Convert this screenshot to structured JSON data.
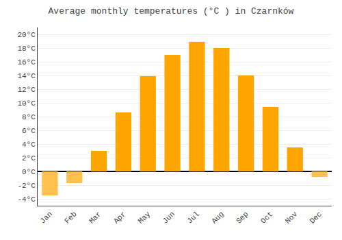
{
  "chart_data": {
    "type": "bar",
    "title": "Average monthly temperatures (°C ) in Czarnków",
    "categories": [
      "Jan",
      "Feb",
      "Mar",
      "Apr",
      "May",
      "Jun",
      "Jul",
      "Aug",
      "Sep",
      "Oct",
      "Nov",
      "Dec"
    ],
    "values": [
      -3.5,
      -1.7,
      3.0,
      8.6,
      13.9,
      17.0,
      18.9,
      18.0,
      14.0,
      9.4,
      3.5,
      -0.8
    ],
    "colors": [
      "#FFC04D",
      "#FFC04D",
      "#FFA500",
      "#FFA500",
      "#FFA500",
      "#FFA500",
      "#FFA500",
      "#FFA500",
      "#FFA500",
      "#FFA500",
      "#FFA500",
      "#FFC04D"
    ],
    "ylim": [
      -5,
      21
    ],
    "yticks": [
      {
        "value": -4,
        "label": "-4°C"
      },
      {
        "value": -2,
        "label": "-2°C"
      },
      {
        "value": 0,
        "label": "0°C"
      },
      {
        "value": 2,
        "label": "2°C"
      },
      {
        "value": 4,
        "label": "4°C"
      },
      {
        "value": 6,
        "label": "6°C"
      },
      {
        "value": 8,
        "label": "8°C"
      },
      {
        "value": 10,
        "label": "10°C"
      },
      {
        "value": 12,
        "label": "12°C"
      },
      {
        "value": 14,
        "label": "14°C"
      },
      {
        "value": 16,
        "label": "16°C"
      },
      {
        "value": 18,
        "label": "18°C"
      },
      {
        "value": 20,
        "label": "20°C"
      }
    ],
    "grid": true
  }
}
